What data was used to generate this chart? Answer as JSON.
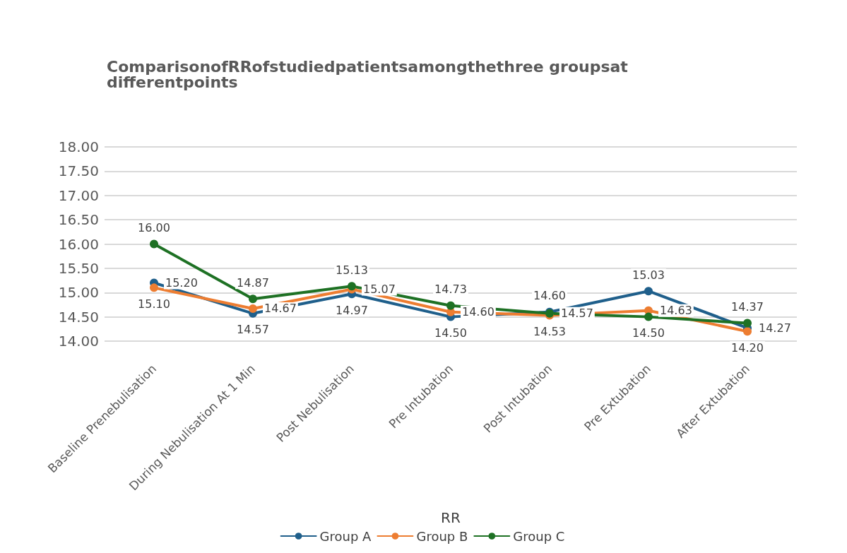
{
  "chart_data": {
    "type": "line",
    "title": "ComparisonofRRofstudiedpatientsamongthethree groupsat differentpoints",
    "xlabel": "RR",
    "categories": [
      "Baseline Prenebulisation",
      "During Nebulisation At 1 Min",
      "Post Nebulisation",
      "Pre Intubation",
      "Post Intubation",
      "Pre Extubation",
      "After Extubation"
    ],
    "series": [
      {
        "name": "Group A",
        "color": "#1f5f8b",
        "values": [
          15.2,
          14.57,
          14.97,
          14.5,
          14.6,
          15.03,
          14.27
        ],
        "value_labels": [
          "15.20",
          "14.57",
          "14.97",
          "14.50",
          "14.60",
          "15.03",
          "14.27"
        ]
      },
      {
        "name": "Group B",
        "color": "#ed7d31",
        "values": [
          15.1,
          14.67,
          15.07,
          14.6,
          14.53,
          14.63,
          14.2
        ],
        "value_labels": [
          "15.10",
          "14.67",
          "15.07",
          "14.60",
          "14.53",
          "14.63",
          "14.20"
        ]
      },
      {
        "name": "Group C",
        "color": "#1e7124",
        "values": [
          16.0,
          14.87,
          15.13,
          14.73,
          14.57,
          14.5,
          14.37
        ],
        "value_labels": [
          "16.00",
          "14.87",
          "15.13",
          "14.73",
          "14.57",
          "14.50",
          "14.37"
        ]
      }
    ],
    "ylim": [
      14,
      18
    ],
    "yticks": [
      {
        "value": 14,
        "label": "14.00"
      },
      {
        "value": 14.5,
        "label": "14.50"
      },
      {
        "value": 15,
        "label": "15.00"
      },
      {
        "value": 15.5,
        "label": "15.50"
      },
      {
        "value": 16,
        "label": "16.00"
      },
      {
        "value": 16.5,
        "label": "16.50"
      },
      {
        "value": 17,
        "label": "17.00"
      },
      {
        "value": 17.5,
        "label": "17.50"
      },
      {
        "value": 18,
        "label": "18.00"
      }
    ],
    "grid": "y",
    "legend": "bottom",
    "marker": "circle",
    "line_style": "solid"
  }
}
